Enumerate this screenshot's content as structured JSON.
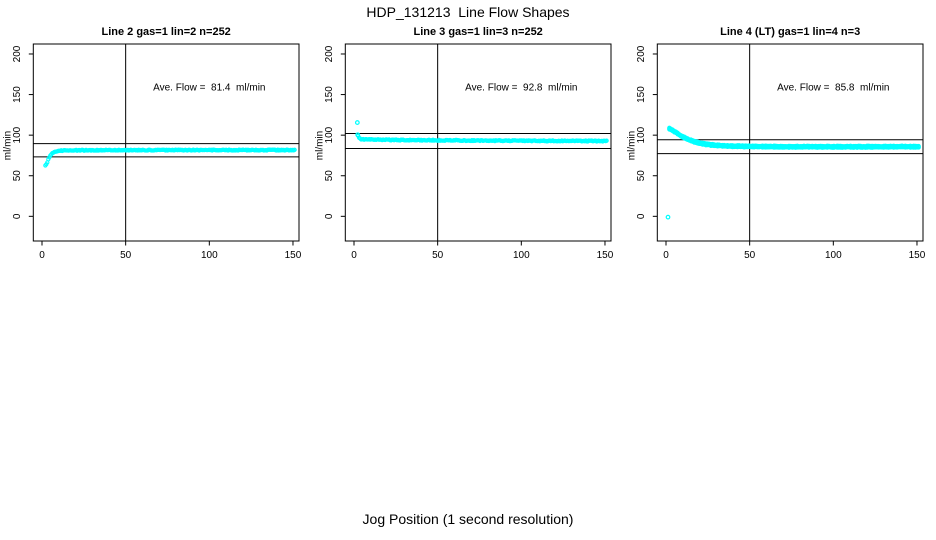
{
  "page": {
    "main_title": "HDP_131213  Line Flow Shapes",
    "xlabel": "Jog Position (1 second resolution)"
  },
  "colors": {
    "points": "#00ffff",
    "axis": "#000000",
    "background": "#ffffff"
  },
  "chart_data": [
    {
      "type": "scatter",
      "title": "Line 2 gas=1 lin=2 n=252",
      "ylabel": "ml/min",
      "ave_flow": 81.4,
      "ave_flow_label": "Ave. Flow =  81.4  ml/min",
      "annotation_pos": {
        "x": 100,
        "y": 155
      },
      "xticks": [
        0,
        50,
        100,
        150
      ],
      "yticks": [
        0,
        50,
        100,
        150,
        200
      ],
      "xlim": [
        -5.2,
        153.6
      ],
      "ylim": [
        -30.4,
        212.3
      ],
      "vline_x": 50,
      "hlines": [
        89.5,
        73.3
      ],
      "marker": "open-circle",
      "n_label": 252,
      "points_per_run": 252,
      "runs": [
        0
      ],
      "x_range": [
        2,
        151
      ],
      "noise": 0.55,
      "outliers": [],
      "profile": [
        [
          2,
          62.5
        ],
        [
          3,
          66
        ],
        [
          3.8,
          70
        ],
        [
          4.6,
          73.5
        ],
        [
          5.4,
          76
        ],
        [
          6.4,
          78
        ],
        [
          7.5,
          79.3
        ],
        [
          9,
          80.3
        ],
        [
          11,
          80.9
        ],
        [
          15,
          81.2
        ],
        [
          25,
          81.4
        ],
        [
          50,
          81.5
        ],
        [
          100,
          81.6
        ],
        [
          151,
          81.6
        ]
      ]
    },
    {
      "type": "scatter",
      "title": "Line 3 gas=1 lin=3 n=252",
      "ylabel": "ml/min",
      "ave_flow": 92.8,
      "ave_flow_label": "Ave. Flow =  92.8  ml/min",
      "annotation_pos": {
        "x": 100,
        "y": 155
      },
      "xticks": [
        0,
        50,
        100,
        150
      ],
      "yticks": [
        0,
        50,
        100,
        150,
        200
      ],
      "xlim": [
        -5.2,
        153.6
      ],
      "ylim": [
        -30.4,
        212.3
      ],
      "vline_x": 50,
      "hlines": [
        102.1,
        83.5
      ],
      "marker": "open-circle",
      "n_label": 252,
      "points_per_run": 250,
      "runs": [
        0
      ],
      "x_range": [
        2.5,
        151
      ],
      "noise": 0.6,
      "outliers": [
        [
          2,
          115.5
        ],
        [
          2.2,
          100.5
        ]
      ],
      "profile": [
        [
          2.5,
          99
        ],
        [
          3,
          96.5
        ],
        [
          4,
          95.3
        ],
        [
          6,
          94.8
        ],
        [
          10,
          94.5
        ],
        [
          20,
          94.2
        ],
        [
          40,
          93.8
        ],
        [
          70,
          93.4
        ],
        [
          100,
          93.1
        ],
        [
          130,
          92.9
        ],
        [
          151,
          92.7
        ]
      ]
    },
    {
      "type": "scatter",
      "title": "Line 4 (LT) gas=1 lin=4 n=3",
      "ylabel": "ml/min",
      "ave_flow": 85.8,
      "ave_flow_label": "Ave. Flow =  85.8  ml/min",
      "annotation_pos": {
        "x": 100,
        "y": 155
      },
      "xticks": [
        0,
        50,
        100,
        150
      ],
      "yticks": [
        0,
        50,
        100,
        150,
        200
      ],
      "xlim": [
        -5.2,
        153.6
      ],
      "ylim": [
        -30.4,
        212.3
      ],
      "vline_x": 50,
      "hlines": [
        94.4,
        77.2
      ],
      "marker": "open-circle",
      "n_label": 3,
      "points_per_run": 151,
      "runs": [
        -0.9,
        0,
        0.9
      ],
      "x_range": [
        2,
        151
      ],
      "noise": 0.35,
      "outliers": [
        [
          1.2,
          -1
        ]
      ],
      "profile": [
        [
          2,
          108
        ],
        [
          3,
          107.2
        ],
        [
          4,
          106
        ],
        [
          5,
          104.6
        ],
        [
          6,
          103.2
        ],
        [
          8,
          100.4
        ],
        [
          10,
          98
        ],
        [
          12,
          95.9
        ],
        [
          14,
          94.1
        ],
        [
          16,
          92.6
        ],
        [
          18,
          91.3
        ],
        [
          20,
          90.3
        ],
        [
          23,
          89.1
        ],
        [
          26,
          88.2
        ],
        [
          30,
          87.4
        ],
        [
          35,
          86.8
        ],
        [
          40,
          86.4
        ],
        [
          50,
          86.1
        ],
        [
          60,
          85.9
        ],
        [
          80,
          85.7
        ],
        [
          100,
          85.7
        ],
        [
          120,
          85.7
        ],
        [
          151,
          85.8
        ]
      ]
    }
  ]
}
